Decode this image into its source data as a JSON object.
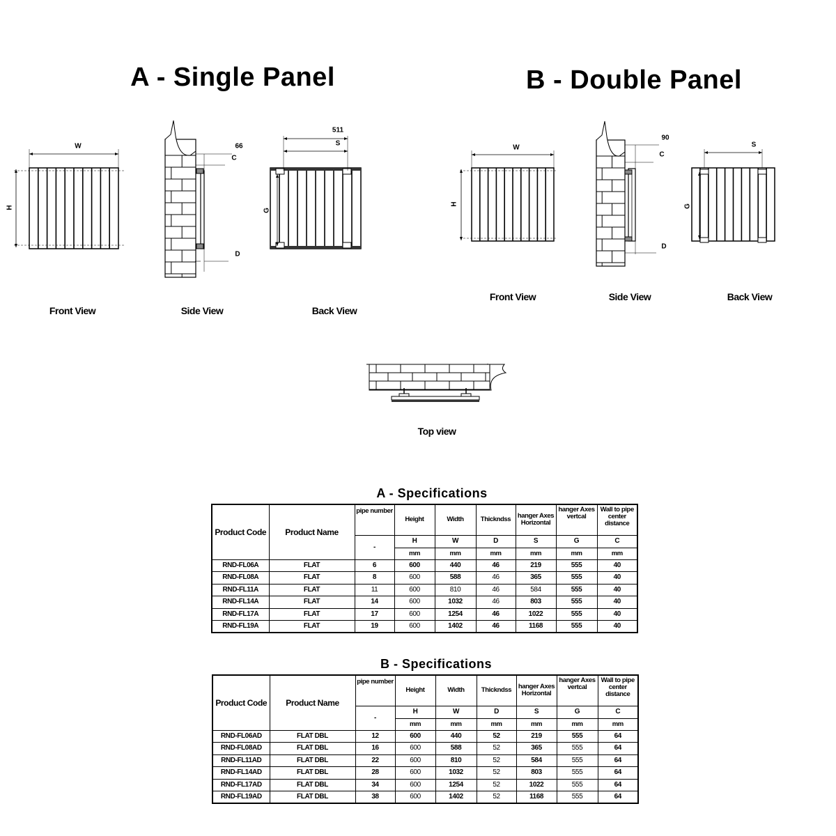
{
  "section_a": {
    "title": "A - Single Panel",
    "dimensions": {
      "w": "W",
      "h": "H",
      "c": "C",
      "d": "D",
      "s": "S",
      "g": "G",
      "wall_offset": "66",
      "hanger_span": "511"
    },
    "views": {
      "front": "Front View",
      "side": "Side View",
      "back": "Back View"
    }
  },
  "section_b": {
    "title": "B - Double Panel",
    "dimensions": {
      "w": "W",
      "h": "H",
      "c": "C",
      "d": "D",
      "s": "S",
      "g": "G",
      "wall_offset": "90"
    },
    "views": {
      "front": "Front View",
      "side": "Side View",
      "back": "Back View"
    }
  },
  "top_view": {
    "label": "Top view"
  },
  "columns": {
    "product_code": "Product Code",
    "product_name": "Product Name",
    "pipe_number": "pipe number",
    "height": "Height",
    "width": "Width",
    "thickness": "Thickndss",
    "hanger_h": "hanger Axes Horizontal",
    "hanger_v": "hanger Axes vertcal",
    "wall_pipe": "Wall to pipe center distance",
    "symbols": [
      "-",
      "H",
      "W",
      "D",
      "S",
      "G",
      "C"
    ],
    "units": [
      "mm",
      "mm",
      "mm",
      "mm",
      "mm",
      "mm"
    ]
  },
  "spec_a": {
    "title": "A - Specifications",
    "rows": [
      [
        "RND-FL06A",
        "FLAT",
        "6",
        "600",
        "440",
        "46",
        "219",
        "555",
        "40"
      ],
      [
        "RND-FL08A",
        "FLAT",
        "8",
        "600",
        "588",
        "46",
        "365",
        "555",
        "40"
      ],
      [
        "RND-FL11A",
        "FLAT",
        "11",
        "600",
        "810",
        "46",
        "584",
        "555",
        "40"
      ],
      [
        "RND-FL14A",
        "FLAT",
        "14",
        "600",
        "1032",
        "46",
        "803",
        "555",
        "40"
      ],
      [
        "RND-FL17A",
        "FLAT",
        "17",
        "600",
        "1254",
        "46",
        "1022",
        "555",
        "40"
      ],
      [
        "RND-FL19A",
        "FLAT",
        "19",
        "600",
        "1402",
        "46",
        "1168",
        "555",
        "40"
      ]
    ]
  },
  "spec_b": {
    "title": "B - Specifications",
    "rows": [
      [
        "RND-FL06AD",
        "FLAT DBL",
        "12",
        "600",
        "440",
        "52",
        "219",
        "555",
        "64"
      ],
      [
        "RND-FL08AD",
        "FLAT DBL",
        "16",
        "600",
        "588",
        "52",
        "365",
        "555",
        "64"
      ],
      [
        "RND-FL11AD",
        "FLAT DBL",
        "22",
        "600",
        "810",
        "52",
        "584",
        "555",
        "64"
      ],
      [
        "RND-FL14AD",
        "FLAT DBL",
        "28",
        "600",
        "1032",
        "52",
        "803",
        "555",
        "64"
      ],
      [
        "RND-FL17AD",
        "FLAT DBL",
        "34",
        "600",
        "1254",
        "52",
        "1022",
        "555",
        "64"
      ],
      [
        "RND-FL19AD",
        "FLAT DBL",
        "38",
        "600",
        "1402",
        "52",
        "1168",
        "555",
        "64"
      ]
    ]
  }
}
